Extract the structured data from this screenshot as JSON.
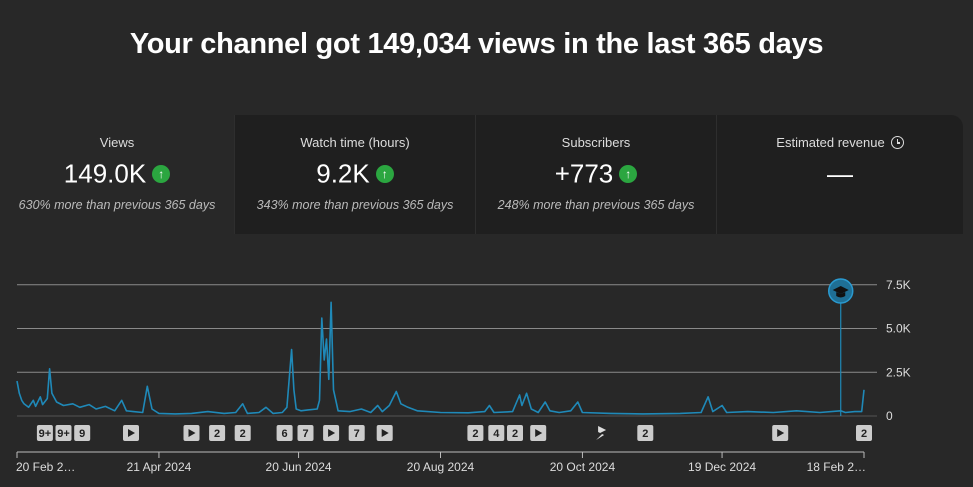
{
  "headline": "Your channel got 149,034 views in the last 365 days",
  "cards": [
    {
      "title": "Views",
      "value": "149.0K",
      "sub": "630% more than previous 365 days",
      "trend": "up"
    },
    {
      "title": "Watch time (hours)",
      "value": "9.2K",
      "sub": "343% more than previous 365 days",
      "trend": "up"
    },
    {
      "title": "Subscribers",
      "value": "+773",
      "sub": "248% more than previous 365 days",
      "trend": "up"
    },
    {
      "title": "Estimated revenue",
      "value": "—",
      "sub": "",
      "trend": "none"
    }
  ],
  "colors": {
    "line": "#1f89b8",
    "up": "#2ba640",
    "grid": "#8a8a8a"
  },
  "chart_data": {
    "type": "line",
    "x_start": "20 Feb 2024",
    "x_end": "18 Feb 2025",
    "ylim": [
      0,
      8000
    ],
    "y_ticks": [
      0,
      2500,
      5000,
      7500
    ],
    "y_tick_labels": [
      "0",
      "2.5K",
      "5.0K",
      "7.5K"
    ],
    "x_tick_labels": [
      "20 Feb 2…",
      "21 Apr 2024",
      "20 Jun 2024",
      "20 Aug 2024",
      "20 Oct 2024",
      "19 Dec 2024",
      "18 Feb 2…"
    ],
    "points": [
      {
        "x": "2024-02-20",
        "y": 2000
      },
      {
        "x": "2024-02-21",
        "y": 1300
      },
      {
        "x": "2024-02-22",
        "y": 900
      },
      {
        "x": "2024-02-23",
        "y": 700
      },
      {
        "x": "2024-02-25",
        "y": 500
      },
      {
        "x": "2024-02-27",
        "y": 900
      },
      {
        "x": "2024-02-28",
        "y": 550
      },
      {
        "x": "2024-03-01",
        "y": 1100
      },
      {
        "x": "2024-03-02",
        "y": 650
      },
      {
        "x": "2024-03-04",
        "y": 1000
      },
      {
        "x": "2024-03-05",
        "y": 2700
      },
      {
        "x": "2024-03-06",
        "y": 1300
      },
      {
        "x": "2024-03-08",
        "y": 800
      },
      {
        "x": "2024-03-11",
        "y": 600
      },
      {
        "x": "2024-03-15",
        "y": 700
      },
      {
        "x": "2024-03-18",
        "y": 500
      },
      {
        "x": "2024-03-22",
        "y": 650
      },
      {
        "x": "2024-03-25",
        "y": 400
      },
      {
        "x": "2024-03-29",
        "y": 550
      },
      {
        "x": "2024-04-02",
        "y": 300
      },
      {
        "x": "2024-04-05",
        "y": 900
      },
      {
        "x": "2024-04-07",
        "y": 300
      },
      {
        "x": "2024-04-10",
        "y": 250
      },
      {
        "x": "2024-04-14",
        "y": 200
      },
      {
        "x": "2024-04-16",
        "y": 1700
      },
      {
        "x": "2024-04-18",
        "y": 400
      },
      {
        "x": "2024-04-21",
        "y": 150
      },
      {
        "x": "2024-04-28",
        "y": 120
      },
      {
        "x": "2024-05-05",
        "y": 150
      },
      {
        "x": "2024-05-12",
        "y": 250
      },
      {
        "x": "2024-05-19",
        "y": 150
      },
      {
        "x": "2024-05-24",
        "y": 200
      },
      {
        "x": "2024-05-27",
        "y": 700
      },
      {
        "x": "2024-05-29",
        "y": 150
      },
      {
        "x": "2024-06-03",
        "y": 200
      },
      {
        "x": "2024-06-06",
        "y": 500
      },
      {
        "x": "2024-06-09",
        "y": 150
      },
      {
        "x": "2024-06-13",
        "y": 200
      },
      {
        "x": "2024-06-15",
        "y": 500
      },
      {
        "x": "2024-06-17",
        "y": 3800
      },
      {
        "x": "2024-06-18",
        "y": 1500
      },
      {
        "x": "2024-06-19",
        "y": 400
      },
      {
        "x": "2024-06-21",
        "y": 300
      },
      {
        "x": "2024-06-24",
        "y": 350
      },
      {
        "x": "2024-06-28",
        "y": 400
      },
      {
        "x": "2024-06-29",
        "y": 900
      },
      {
        "x": "2024-06-30",
        "y": 5600
      },
      {
        "x": "2024-07-01",
        "y": 3200
      },
      {
        "x": "2024-07-02",
        "y": 4400
      },
      {
        "x": "2024-07-03",
        "y": 2100
      },
      {
        "x": "2024-07-04",
        "y": 6500
      },
      {
        "x": "2024-07-05",
        "y": 1500
      },
      {
        "x": "2024-07-07",
        "y": 300
      },
      {
        "x": "2024-07-12",
        "y": 250
      },
      {
        "x": "2024-07-17",
        "y": 400
      },
      {
        "x": "2024-07-21",
        "y": 200
      },
      {
        "x": "2024-07-24",
        "y": 600
      },
      {
        "x": "2024-07-26",
        "y": 250
      },
      {
        "x": "2024-07-29",
        "y": 600
      },
      {
        "x": "2024-08-01",
        "y": 1400
      },
      {
        "x": "2024-08-03",
        "y": 700
      },
      {
        "x": "2024-08-06",
        "y": 500
      },
      {
        "x": "2024-08-10",
        "y": 300
      },
      {
        "x": "2024-08-20",
        "y": 200
      },
      {
        "x": "2024-09-01",
        "y": 180
      },
      {
        "x": "2024-09-08",
        "y": 250
      },
      {
        "x": "2024-09-10",
        "y": 600
      },
      {
        "x": "2024-09-12",
        "y": 200
      },
      {
        "x": "2024-09-20",
        "y": 250
      },
      {
        "x": "2024-09-23",
        "y": 1200
      },
      {
        "x": "2024-09-24",
        "y": 600
      },
      {
        "x": "2024-09-26",
        "y": 1300
      },
      {
        "x": "2024-09-28",
        "y": 400
      },
      {
        "x": "2024-10-01",
        "y": 200
      },
      {
        "x": "2024-10-04",
        "y": 800
      },
      {
        "x": "2024-10-06",
        "y": 300
      },
      {
        "x": "2024-10-10",
        "y": 200
      },
      {
        "x": "2024-10-15",
        "y": 300
      },
      {
        "x": "2024-10-18",
        "y": 800
      },
      {
        "x": "2024-10-20",
        "y": 200
      },
      {
        "x": "2024-11-01",
        "y": 150
      },
      {
        "x": "2024-11-15",
        "y": 120
      },
      {
        "x": "2024-12-01",
        "y": 150
      },
      {
        "x": "2024-12-10",
        "y": 200
      },
      {
        "x": "2024-12-13",
        "y": 1100
      },
      {
        "x": "2024-12-15",
        "y": 250
      },
      {
        "x": "2024-12-19",
        "y": 600
      },
      {
        "x": "2024-12-21",
        "y": 200
      },
      {
        "x": "2024-12-30",
        "y": 250
      },
      {
        "x": "2025-01-10",
        "y": 200
      },
      {
        "x": "2025-01-20",
        "y": 300
      },
      {
        "x": "2025-01-30",
        "y": 200
      },
      {
        "x": "2025-02-08",
        "y": 300
      },
      {
        "x": "2025-02-10",
        "y": 200
      },
      {
        "x": "2025-02-14",
        "y": 250
      },
      {
        "x": "2025-02-17",
        "y": 250
      },
      {
        "x": "2025-02-18",
        "y": 1500
      }
    ],
    "annotation": {
      "date": "2025-02-08",
      "icon": "graduation-cap-icon"
    },
    "markers": [
      {
        "date": "2024-03-03",
        "label": "9+"
      },
      {
        "date": "2024-03-11",
        "label": "9+"
      },
      {
        "date": "2024-03-19",
        "label": "9"
      },
      {
        "date": "2024-04-09",
        "label": "play-icon"
      },
      {
        "date": "2024-05-05",
        "label": "play-icon"
      },
      {
        "date": "2024-05-16",
        "label": "2"
      },
      {
        "date": "2024-05-27",
        "label": "2"
      },
      {
        "date": "2024-06-14",
        "label": "6"
      },
      {
        "date": "2024-06-23",
        "label": "7"
      },
      {
        "date": "2024-07-04",
        "label": "play-icon"
      },
      {
        "date": "2024-07-15",
        "label": "7"
      },
      {
        "date": "2024-07-27",
        "label": "play-icon"
      },
      {
        "date": "2024-09-04",
        "label": "2"
      },
      {
        "date": "2024-09-13",
        "label": "4"
      },
      {
        "date": "2024-09-21",
        "label": "2"
      },
      {
        "date": "2024-10-01",
        "label": "play-icon"
      },
      {
        "date": "2024-10-28",
        "label": "shorts-icon"
      },
      {
        "date": "2024-11-16",
        "label": "2"
      },
      {
        "date": "2025-01-13",
        "label": "play-icon"
      },
      {
        "date": "2025-02-18",
        "label": "2"
      }
    ]
  }
}
